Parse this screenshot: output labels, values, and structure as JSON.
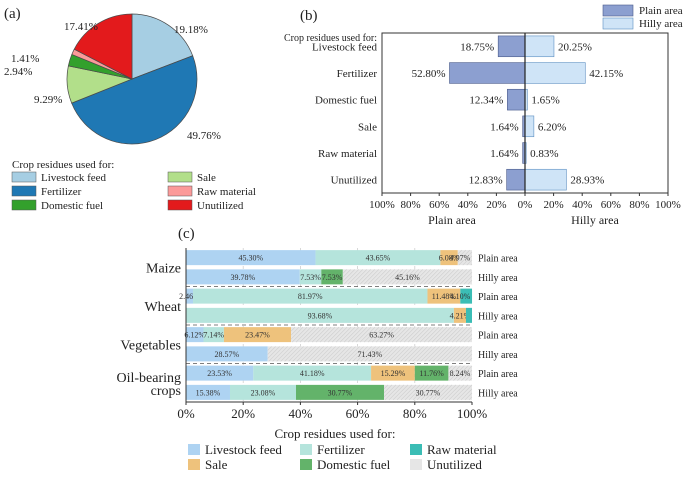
{
  "colors": {
    "livestock_feed": "#a6cee3",
    "fertilizer": "#1f78b4",
    "domestic_fuel": "#33a02c",
    "sale": "#b2df8a",
    "raw_material": "#fb9a99",
    "unutilized": "#e31a1c",
    "plain_area": "#8c9fd0",
    "hilly_area": "#cfe4f7",
    "c_livestock": "#aed3f2",
    "c_fertilizer": "#b5e4dc",
    "c_raw": "#3bbdb5",
    "c_sale": "#eec27c",
    "c_domestic": "#63b36a",
    "c_unutilized": "#e6e6e6"
  },
  "chart_data": [
    {
      "type": "pie",
      "panel_label": "(a)",
      "legend_title": "Crop residues used for:",
      "slices": [
        {
          "key": "livestock_feed",
          "label": "Livestock feed",
          "value": 19.18,
          "text": "19.18%"
        },
        {
          "key": "fertilizer",
          "label": "Fertilizer",
          "value": 49.76,
          "text": "49.76%"
        },
        {
          "key": "sale",
          "label": "Sale",
          "value": 9.29,
          "text": "9.29%"
        },
        {
          "key": "domestic_fuel",
          "label": "Domestic fuel",
          "value": 2.94,
          "text": "2.94%"
        },
        {
          "key": "raw_material",
          "label": "Raw material",
          "value": 1.41,
          "text": "1.41%"
        },
        {
          "key": "unutilized",
          "label": "Unutilized",
          "value": 17.41,
          "text": "17.41%"
        }
      ],
      "legend_order": [
        "livestock_feed",
        "sale",
        "fertilizer",
        "raw_material",
        "domestic_fuel",
        "unutilized"
      ]
    },
    {
      "type": "bar",
      "panel_label": "(b)",
      "orientation": "horizontal-diverging",
      "category_title": "Crop residues used for:",
      "categories": [
        "Livestock feed",
        "Fertilizer",
        "Domestic fuel",
        "Sale",
        "Raw material",
        "Unutilized"
      ],
      "series": [
        {
          "name": "Plain area",
          "side": "left",
          "values": [
            18.75,
            52.8,
            12.34,
            1.64,
            1.64,
            12.83
          ],
          "labels": [
            "18.75%",
            "52.80%",
            "12.34%",
            "1.64%",
            "1.64%",
            "12.83%"
          ]
        },
        {
          "name": "Hilly area",
          "side": "right",
          "values": [
            20.25,
            42.15,
            1.65,
            6.2,
            0.83,
            28.93
          ],
          "labels": [
            "20.25%",
            "42.15%",
            "1.65%",
            "6.20%",
            "0.83%",
            "28.93%"
          ]
        }
      ],
      "xlim": [
        -100,
        100
      ],
      "xticks": [
        "100%",
        "80%",
        "60%",
        "40%",
        "20%",
        "0%",
        "20%",
        "40%",
        "60%",
        "80%",
        "100%"
      ],
      "xlabel_left": "Plain area",
      "xlabel_right": "Hilly area"
    },
    {
      "type": "bar",
      "panel_label": "(c)",
      "orientation": "horizontal-stacked-100",
      "keys": [
        "livestock",
        "fertilizer",
        "raw",
        "sale",
        "domestic",
        "unutilized"
      ],
      "groups": [
        {
          "crop": "Maize",
          "rows": [
            {
              "area": "Plain area",
              "values": [
                45.3,
                43.65,
                0,
                6.08,
                0,
                4.97
              ],
              "labels": [
                "45.30%",
                "43.65%",
                "",
                "6.08%",
                "",
                "4.97%"
              ]
            },
            {
              "area": "Hilly area",
              "values": [
                39.78,
                7.53,
                0,
                0,
                7.53,
                45.16
              ],
              "labels": [
                "39.78%",
                "7.53%",
                "",
                "",
                "7.53%",
                "45.16%"
              ]
            }
          ]
        },
        {
          "crop": "Wheat",
          "rows": [
            {
              "area": "Plain area",
              "values": [
                2.46,
                81.97,
                4.1,
                11.48,
                0,
                0
              ],
              "labels": [
                "2.46%",
                "81.97%",
                "4.10%",
                "11.48%",
                "",
                ""
              ]
            },
            {
              "area": "Hilly area",
              "values": [
                0,
                93.68,
                2.11,
                4.21,
                0,
                0
              ],
              "labels": [
                "",
                "93.68%",
                "",
                "4.21%",
                "",
                ""
              ]
            }
          ]
        },
        {
          "crop": "Vegetables",
          "rows": [
            {
              "area": "Plain area",
              "values": [
                6.12,
                7.14,
                0,
                23.47,
                0,
                63.27
              ],
              "labels": [
                "6.12%",
                "7.14%",
                "",
                "23.47%",
                "",
                "63.27%"
              ]
            },
            {
              "area": "Hilly area",
              "values": [
                28.57,
                0,
                0,
                0,
                0,
                71.43
              ],
              "labels": [
                "28.57%",
                "",
                "",
                "",
                "",
                "71.43%"
              ]
            }
          ]
        },
        {
          "crop": "Oil-bearing crops",
          "rows": [
            {
              "area": "Plain area",
              "values": [
                23.53,
                41.18,
                0,
                15.29,
                11.76,
                8.24
              ],
              "labels": [
                "23.53%",
                "41.18%",
                "",
                "15.29%",
                "11.76%",
                "8.24%"
              ]
            },
            {
              "area": "Hilly area",
              "values": [
                15.38,
                23.08,
                0,
                0,
                30.77,
                30.77
              ],
              "labels": [
                "15.38%",
                "23.08%",
                "",
                "",
                "30.77%",
                "30.77%"
              ]
            }
          ]
        }
      ],
      "xticks": [
        "0%",
        "20%",
        "40%",
        "60%",
        "80%",
        "100%"
      ],
      "xlim": [
        0,
        100
      ],
      "legend_title": "Crop residues used for:",
      "legend": [
        {
          "key": "livestock",
          "label": "Livestock feed"
        },
        {
          "key": "fertilizer",
          "label": "Fertilizer"
        },
        {
          "key": "raw",
          "label": "Raw material"
        },
        {
          "key": "sale",
          "label": "Sale"
        },
        {
          "key": "domestic",
          "label": "Domestic fuel"
        },
        {
          "key": "unutilized",
          "label": "Unutilized"
        }
      ]
    }
  ]
}
